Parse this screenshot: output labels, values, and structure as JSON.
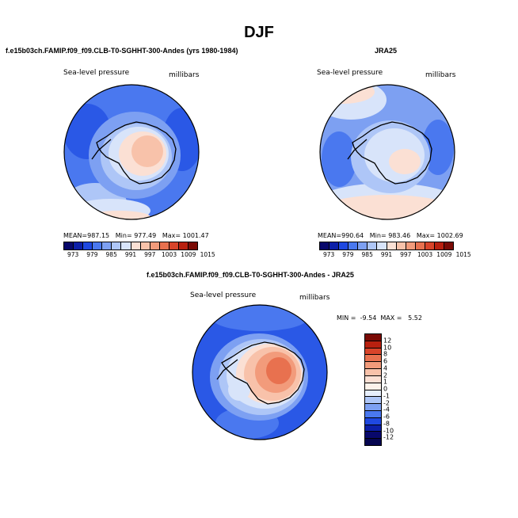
{
  "page_title": "DJF",
  "colors": {
    "scale": [
      "#08086b",
      "#0c1fa8",
      "#1f48e0",
      "#4a78ef",
      "#7da0f2",
      "#aec6f7",
      "#d8e4fa",
      "#fbe0d4",
      "#f8c2aa",
      "#f29b7b",
      "#e8714f",
      "#d8442a",
      "#b8200f",
      "#7a0a05"
    ]
  },
  "chart_data": [
    {
      "type": "map",
      "plot_title": "f.e15b03ch.FAMIP.f09_f09.CLB-T0-SGHHT-300-Andes (yrs 1980-1984)",
      "variable_label": "Sea-level pressure",
      "units_label": "millibars",
      "stats": {
        "mean_label": "MEAN=",
        "mean": "987.15",
        "min_label": "Min=",
        "min": "977.49",
        "max_label": "Max=",
        "max": "1001.47"
      },
      "colorbar_ticks": [
        "973",
        "979",
        "985",
        "991",
        "997",
        "1003",
        "1009",
        "1015"
      ]
    },
    {
      "type": "map",
      "plot_title": "JRA25",
      "variable_label": "Sea-level pressure",
      "units_label": "millibars",
      "stats": {
        "mean_label": "MEAN=",
        "mean": "990.64",
        "min_label": "Min=",
        "min": "983.46",
        "max_label": "Max=",
        "max": "1002.69"
      },
      "colorbar_ticks": [
        "973",
        "979",
        "985",
        "991",
        "997",
        "1003",
        "1009",
        "1015"
      ]
    },
    {
      "type": "map",
      "plot_title": "f.e15b03ch.FAMIP.f09_f09.CLB-T0-SGHHT-300-Andes - JRA25",
      "variable_label": "Sea-level pressure",
      "units_label": "millibars",
      "stats": {
        "min_label": "MIN =",
        "min": "-9.54",
        "max_label": "MAX =",
        "max": "5.52"
      },
      "colorbar_ticks": [
        "12",
        "10",
        "8",
        "6",
        "4",
        "2",
        "1",
        "0",
        "-1",
        "-2",
        "-4",
        "-6",
        "-8",
        "-10",
        "-12"
      ]
    }
  ]
}
